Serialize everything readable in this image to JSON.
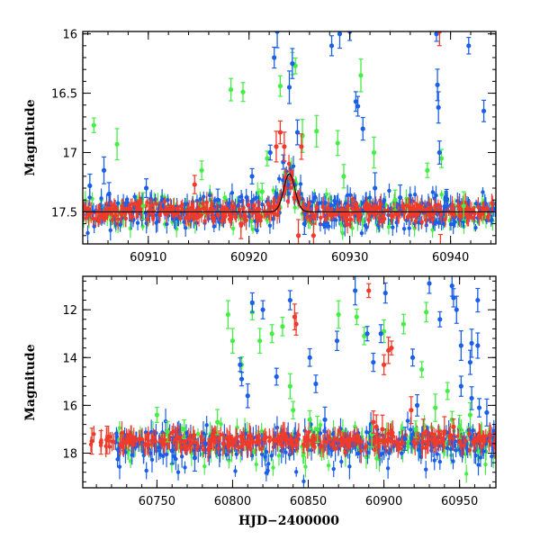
{
  "figure": {
    "ylabel_top": "Magnitude",
    "ylabel_bottom": "Magnitude",
    "xlabel_bottom": "HJD−2400000"
  },
  "colors": {
    "green": "#44ee44",
    "blue": "#1a5fe8",
    "red": "#f03a2a",
    "model": "#000000"
  },
  "chart_data": [
    {
      "type": "scatter",
      "name": "zoomed light curve",
      "xlim": [
        60903.5,
        60944.5
      ],
      "ylim": [
        17.77,
        15.98
      ],
      "y_inverted": true,
      "xticks": [
        60910,
        60920,
        60930,
        60940
      ],
      "yticks": [
        16,
        16.5,
        17,
        17.5
      ],
      "baseline": 17.5,
      "model_peak": {
        "x": 60924.0,
        "y": 17.18,
        "width_days": 1.3
      },
      "series": [
        {
          "name": "green",
          "points": [
            [
              60904.6,
              16.77
            ],
            [
              60906.9,
              16.93
            ],
            [
              60909.5,
              17.45
            ],
            [
              60915.3,
              17.15
            ],
            [
              60918.2,
              16.47
            ],
            [
              60919.4,
              16.49
            ],
            [
              60921.3,
              17.33
            ],
            [
              60921.8,
              17.05
            ],
            [
              60923.1,
              16.44
            ],
            [
              60924.3,
              16.25
            ],
            [
              60924.6,
              16.27
            ],
            [
              60925.3,
              16.86
            ],
            [
              60926.7,
              16.82
            ],
            [
              60928.8,
              16.92
            ],
            [
              60929.4,
              17.2
            ],
            [
              60931.1,
              16.35
            ],
            [
              60932.4,
              17.0
            ],
            [
              60934.5,
              17.4
            ],
            [
              60937.7,
              17.15
            ],
            [
              60939.1,
              17.05
            ],
            [
              60941.3,
              17.45
            ]
          ]
        },
        {
          "name": "blue",
          "points": [
            [
              60904.2,
              17.28
            ],
            [
              60905.6,
              17.15
            ],
            [
              60906.1,
              17.35
            ],
            [
              60909.8,
              17.3
            ],
            [
              60916.9,
              17.4
            ],
            [
              60920.3,
              17.2
            ],
            [
              60922.1,
              17.0
            ],
            [
              60922.5,
              16.2
            ],
            [
              60922.8,
              15.98
            ],
            [
              60923.4,
              17.08
            ],
            [
              60924.0,
              16.45
            ],
            [
              60924.3,
              16.25
            ],
            [
              60924.8,
              16.83
            ],
            [
              60925.5,
              17.6
            ],
            [
              60928.2,
              16.1
            ],
            [
              60929.0,
              16.0
            ],
            [
              60930.0,
              15.98
            ],
            [
              60930.6,
              16.57
            ],
            [
              60930.8,
              16.61
            ],
            [
              60931.3,
              16.8
            ],
            [
              60932.5,
              17.3
            ],
            [
              60935.0,
              17.38
            ],
            [
              60938.6,
              16.0
            ],
            [
              60938.7,
              16.43
            ],
            [
              60938.8,
              16.62
            ],
            [
              60938.9,
              17.0
            ],
            [
              60939.6,
              17.4
            ],
            [
              60941.8,
              16.1
            ],
            [
              60943.3,
              16.65
            ]
          ]
        },
        {
          "name": "red",
          "points": [
            [
              60914.6,
              17.27
            ],
            [
              60919.2,
              17.6
            ],
            [
              60922.7,
              16.95
            ],
            [
              60923.1,
              16.83
            ],
            [
              60923.5,
              16.95
            ],
            [
              60924.9,
              17.7
            ],
            [
              60925.2,
              16.95
            ],
            [
              60926.4,
              17.7
            ],
            [
              60938.9,
              15.98
            ],
            [
              60939.0,
              17.8
            ]
          ]
        }
      ]
    },
    {
      "type": "scatter",
      "name": "full light curve",
      "xlim": [
        60701,
        60974
      ],
      "ylim": [
        19.45,
        10.6
      ],
      "y_inverted": true,
      "xticks": [
        60750,
        60800,
        60850,
        60900,
        60950
      ],
      "yticks": [
        12,
        14,
        16,
        18
      ],
      "baseline": 17.5,
      "series": [
        {
          "name": "green",
          "points": [
            [
              60750,
              16.4
            ],
            [
              60757,
              17.1
            ],
            [
              60768,
              17.0
            ],
            [
              60790,
              16.7
            ],
            [
              60797,
              12.2
            ],
            [
              60800,
              13.3
            ],
            [
              60806,
              14.3
            ],
            [
              60813,
              12.1
            ],
            [
              60818,
              13.3
            ],
            [
              60826,
              13.0
            ],
            [
              60833,
              12.7
            ],
            [
              60838,
              15.2
            ],
            [
              60840,
              16.2
            ],
            [
              60851,
              16.6
            ],
            [
              60856,
              17.0
            ],
            [
              60870,
              12.2
            ],
            [
              60882,
              12.3
            ],
            [
              60887,
              13.1
            ],
            [
              60892,
              17.2
            ],
            [
              60900,
              12.9
            ],
            [
              60913,
              12.6
            ],
            [
              60921,
              17.0
            ],
            [
              60925,
              14.5
            ],
            [
              60928,
              12.1
            ],
            [
              60934,
              16.1
            ],
            [
              60942,
              15.4
            ],
            [
              60945,
              16.6
            ],
            [
              60950,
              16.9
            ],
            [
              60957,
              16.4
            ]
          ]
        },
        {
          "name": "blue",
          "points": [
            [
              60760,
              17.9
            ],
            [
              60775,
              18.2
            ],
            [
              60782,
              17.6
            ],
            [
              60805,
              14.3
            ],
            [
              60806,
              14.9
            ],
            [
              60810,
              15.6
            ],
            [
              60813,
              11.7
            ],
            [
              60820,
              12.0
            ],
            [
              60829,
              14.8
            ],
            [
              60838,
              11.6
            ],
            [
              60851,
              14.0
            ],
            [
              60855,
              15.1
            ],
            [
              60861,
              16.6
            ],
            [
              60869,
              13.3
            ],
            [
              60881,
              11.2
            ],
            [
              60889,
              13.0
            ],
            [
              60893,
              14.2
            ],
            [
              60898,
              13.0
            ],
            [
              60901,
              11.3
            ],
            [
              60914,
              17.4
            ],
            [
              60919,
              14.0
            ],
            [
              60922,
              16.0
            ],
            [
              60930,
              10.9
            ],
            [
              60937,
              12.4
            ],
            [
              60945,
              11.0
            ],
            [
              60946,
              11.5
            ],
            [
              60948,
              12.0
            ],
            [
              60951,
              13.5
            ],
            [
              60951,
              15.2
            ],
            [
              60957,
              14.2
            ],
            [
              60958,
              13.4
            ],
            [
              60962,
              11.6
            ],
            [
              60962,
              13.5
            ],
            [
              60963,
              16.1
            ],
            [
              60968,
              16.3
            ],
            [
              60958,
              15.7
            ]
          ]
        },
        {
          "name": "red",
          "points": [
            [
              60707,
              17.5
            ],
            [
              60713,
              17.55
            ],
            [
              60717,
              17.45
            ],
            [
              60841,
              12.3
            ],
            [
              60842,
              12.6
            ],
            [
              60890,
              11.2
            ],
            [
              60893,
              16.7
            ],
            [
              60895,
              16.9
            ],
            [
              60899,
              17.0
            ],
            [
              60900,
              14.3
            ],
            [
              60903,
              13.7
            ],
            [
              60905,
              13.6
            ],
            [
              60918,
              16.2
            ],
            [
              60926,
              17.2
            ],
            [
              60940,
              17.1
            ],
            [
              60946,
              16.9
            ]
          ]
        }
      ]
    }
  ]
}
